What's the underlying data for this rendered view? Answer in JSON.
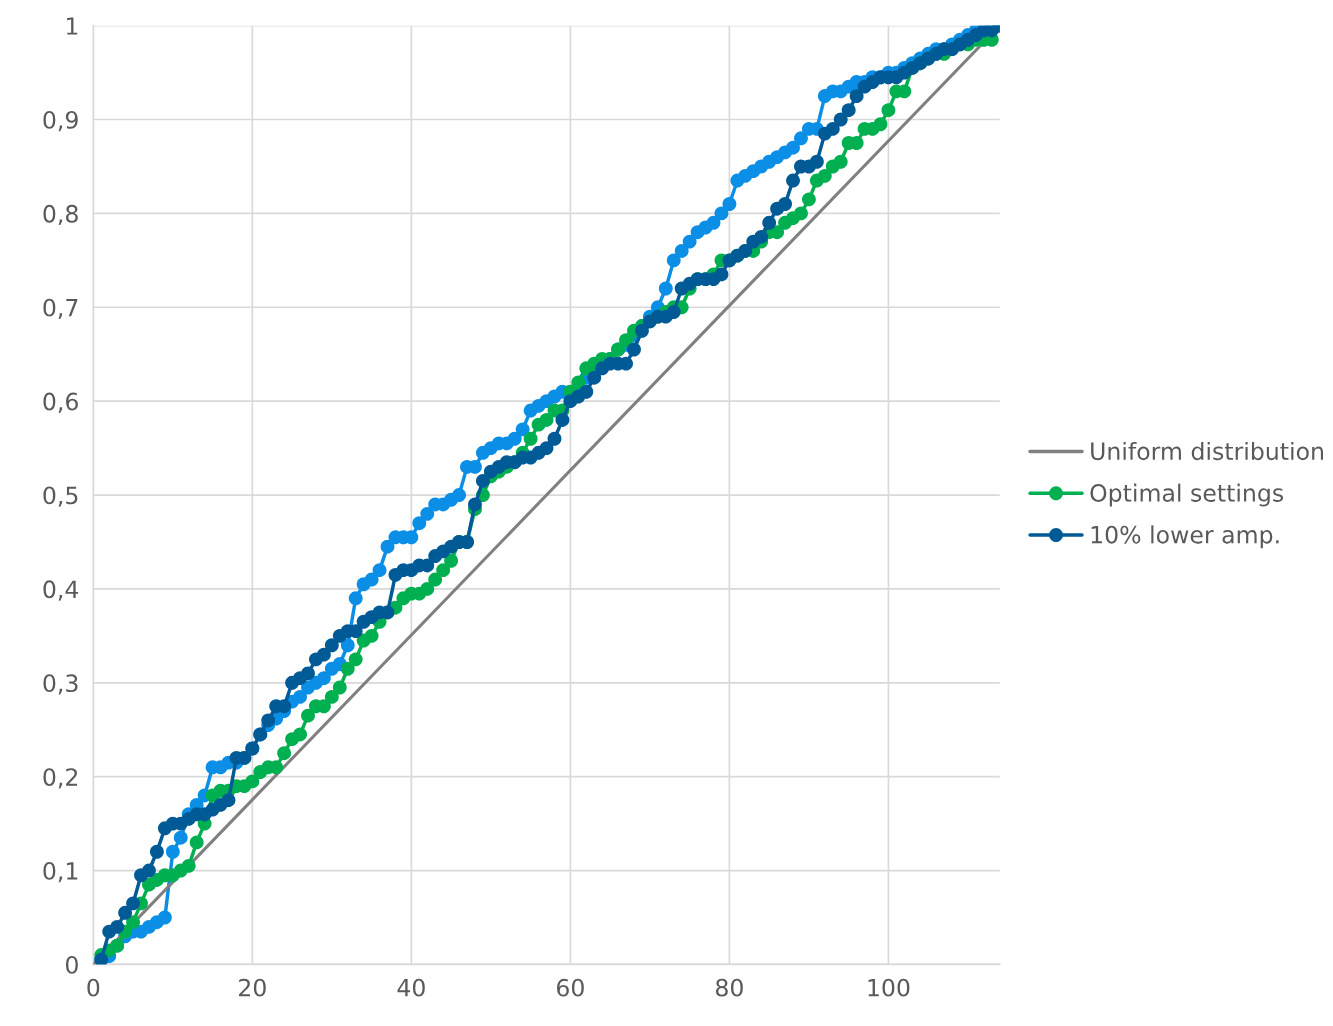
{
  "chart_data": {
    "type": "line",
    "xlim": [
      0,
      114
    ],
    "ylim": [
      0,
      1
    ],
    "xticks": [
      0,
      20,
      40,
      60,
      80,
      100
    ],
    "yticks": [
      {
        "value": 0,
        "label": "0"
      },
      {
        "value": 0.1,
        "label": "0,1"
      },
      {
        "value": 0.2,
        "label": "0,2"
      },
      {
        "value": 0.3,
        "label": "0,3"
      },
      {
        "value": 0.4,
        "label": "0,4"
      },
      {
        "value": 0.5,
        "label": "0,5"
      },
      {
        "value": 0.6,
        "label": "0,6"
      },
      {
        "value": 0.7,
        "label": "0,7"
      },
      {
        "value": 0.8,
        "label": "0,8"
      },
      {
        "value": 0.9,
        "label": "0,9"
      },
      {
        "value": 1,
        "label": "1"
      }
    ],
    "grid": true,
    "legend": "right",
    "marker": "circle",
    "line_style": "solid",
    "x": [
      1,
      2,
      3,
      4,
      5,
      6,
      7,
      8,
      9,
      10,
      11,
      12,
      13,
      14,
      15,
      16,
      17,
      18,
      19,
      20,
      21,
      22,
      23,
      24,
      25,
      26,
      27,
      28,
      29,
      30,
      31,
      32,
      33,
      34,
      35,
      36,
      37,
      38,
      39,
      40,
      41,
      42,
      43,
      44,
      45,
      46,
      47,
      48,
      49,
      50,
      51,
      52,
      53,
      54,
      55,
      56,
      57,
      58,
      59,
      60,
      61,
      62,
      63,
      64,
      65,
      66,
      67,
      68,
      69,
      70,
      71,
      72,
      73,
      74,
      75,
      76,
      77,
      78,
      79,
      80,
      81,
      82,
      83,
      84,
      85,
      86,
      87,
      88,
      89,
      90,
      91,
      92,
      93,
      94,
      95,
      96,
      97,
      98,
      99,
      100,
      101,
      102,
      103,
      104,
      105,
      106,
      107,
      108,
      109,
      110,
      111,
      112,
      113,
      114
    ],
    "series": [
      {
        "color": "#0b8ee6",
        "values": [
          0.005,
          0.009,
          0.02,
          0.03,
          0.035,
          0.035,
          0.04,
          0.045,
          0.05,
          0.12,
          0.135,
          0.16,
          0.17,
          0.18,
          0.21,
          0.21,
          0.215,
          0.215,
          0.22,
          0.23,
          0.245,
          0.255,
          0.262,
          0.27,
          0.28,
          0.285,
          0.295,
          0.3,
          0.305,
          0.315,
          0.32,
          0.34,
          0.39,
          0.405,
          0.41,
          0.42,
          0.445,
          0.455,
          0.455,
          0.455,
          0.47,
          0.48,
          0.49,
          0.49,
          0.495,
          0.5,
          0.53,
          0.53,
          0.545,
          0.55,
          0.555,
          0.555,
          0.56,
          0.57,
          0.59,
          0.595,
          0.6,
          0.605,
          0.61,
          0.61,
          0.615,
          0.625,
          0.635,
          0.64,
          0.645,
          0.655,
          0.66,
          0.67,
          0.68,
          0.69,
          0.7,
          0.72,
          0.75,
          0.76,
          0.77,
          0.78,
          0.785,
          0.79,
          0.8,
          0.81,
          0.835,
          0.84,
          0.845,
          0.85,
          0.855,
          0.86,
          0.865,
          0.87,
          0.88,
          0.89,
          0.89,
          0.925,
          0.93,
          0.93,
          0.935,
          0.94,
          0.94,
          0.945,
          0.945,
          0.95,
          0.95,
          0.955,
          0.96,
          0.965,
          0.97,
          0.975,
          0.975,
          0.98,
          0.985,
          0.99,
          0.995,
          0.995,
          1.0,
          1.0
        ]
      },
      {
        "name": "Uniform distribution",
        "color": "#808080",
        "marker": "none",
        "x": [
          0,
          114
        ],
        "values": [
          0,
          1.0
        ]
      },
      {
        "name": "Optimal settings",
        "color": "#00b050",
        "values": [
          0.01,
          0.015,
          0.02,
          0.035,
          0.045,
          0.065,
          0.085,
          0.09,
          0.095,
          0.095,
          0.1,
          0.105,
          0.13,
          0.15,
          0.18,
          0.185,
          0.185,
          0.19,
          0.19,
          0.195,
          0.205,
          0.21,
          0.21,
          0.225,
          0.24,
          0.245,
          0.265,
          0.275,
          0.275,
          0.285,
          0.295,
          0.315,
          0.325,
          0.345,
          0.35,
          0.365,
          0.375,
          0.38,
          0.39,
          0.395,
          0.395,
          0.4,
          0.41,
          0.42,
          0.43,
          0.45,
          0.45,
          0.485,
          0.5,
          0.52,
          0.525,
          0.53,
          0.535,
          0.545,
          0.56,
          0.575,
          0.58,
          0.59,
          0.59,
          0.61,
          0.62,
          0.635,
          0.64,
          0.645,
          0.645,
          0.655,
          0.665,
          0.675,
          0.68,
          0.685,
          0.69,
          0.695,
          0.7,
          0.7,
          0.72,
          0.73,
          0.73,
          0.735,
          0.75,
          0.75,
          0.755,
          0.76,
          0.76,
          0.77,
          0.78,
          0.78,
          0.79,
          0.795,
          0.8,
          0.815,
          0.835,
          0.84,
          0.85,
          0.855,
          0.875,
          0.875,
          0.89,
          0.89,
          0.895,
          0.91,
          0.93,
          0.93,
          0.955,
          0.96,
          0.965,
          0.97,
          0.97,
          0.975,
          0.98,
          0.98,
          0.985,
          0.985,
          0.985,
          1.0
        ]
      },
      {
        "name": "10% lower amp.",
        "color": "#005a96",
        "values": [
          0.005,
          0.035,
          0.04,
          0.055,
          0.065,
          0.095,
          0.1,
          0.12,
          0.145,
          0.15,
          0.15,
          0.155,
          0.16,
          0.16,
          0.165,
          0.17,
          0.175,
          0.22,
          0.22,
          0.23,
          0.245,
          0.26,
          0.275,
          0.275,
          0.3,
          0.305,
          0.31,
          0.325,
          0.33,
          0.34,
          0.35,
          0.355,
          0.355,
          0.365,
          0.37,
          0.375,
          0.375,
          0.415,
          0.42,
          0.42,
          0.425,
          0.425,
          0.435,
          0.44,
          0.445,
          0.45,
          0.45,
          0.49,
          0.515,
          0.525,
          0.53,
          0.535,
          0.535,
          0.54,
          0.54,
          0.545,
          0.55,
          0.56,
          0.58,
          0.6,
          0.605,
          0.61,
          0.625,
          0.635,
          0.64,
          0.64,
          0.64,
          0.655,
          0.675,
          0.685,
          0.69,
          0.69,
          0.695,
          0.72,
          0.725,
          0.73,
          0.73,
          0.73,
          0.735,
          0.75,
          0.755,
          0.76,
          0.77,
          0.775,
          0.79,
          0.805,
          0.81,
          0.835,
          0.85,
          0.85,
          0.855,
          0.885,
          0.89,
          0.9,
          0.91,
          0.925,
          0.935,
          0.94,
          0.945,
          0.945,
          0.945,
          0.95,
          0.955,
          0.96,
          0.965,
          0.97,
          0.975,
          0.975,
          0.98,
          0.985,
          0.99,
          0.995,
          0.995,
          1.0
        ]
      }
    ]
  }
}
